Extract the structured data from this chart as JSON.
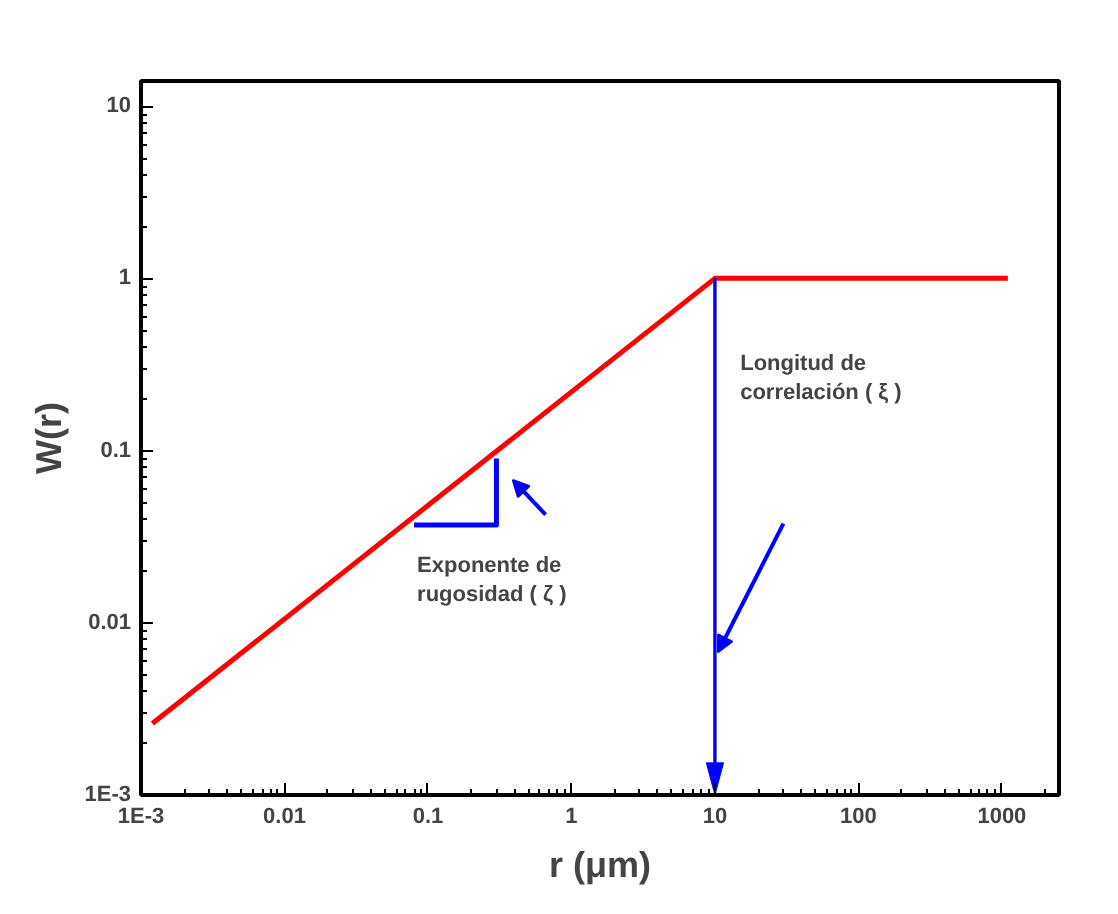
{
  "chart_data": {
    "type": "line",
    "xlabel": "r (μm)",
    "ylabel": "W(r)",
    "log": "xy",
    "xlim": [
      0.001,
      2500
    ],
    "ylim": [
      0.001,
      14
    ],
    "xticks": [
      {
        "value": 0.001,
        "label": "1E-3"
      },
      0.01,
      0.1,
      1,
      10,
      100,
      1000
    ],
    "yticks": [
      {
        "value": 0.001,
        "label": "1E-3"
      },
      0.01,
      0.1,
      1,
      10
    ],
    "series": [
      {
        "color": "#ff0000",
        "x": [
          0.0012,
          10,
          1100
        ],
        "values": [
          0.0026,
          1,
          1
        ]
      },
      {
        "color": "#0000ff",
        "x": [
          0.08,
          0.3,
          0.3
        ],
        "values": [
          0.037,
          0.037,
          0.09
        ]
      }
    ],
    "annotations": [
      {
        "text": "Exponente de\nrugosidad ( ζ )",
        "x": 0.3,
        "y": 0.05
      },
      "Longitud de\ncorrelación ( ξ )"
    ],
    "ref_lines": [
      {
        "axis": "x",
        "value": 10,
        "color": "#0000ff"
      }
    ],
    "grid": false,
    "marker": "none",
    "line_style": "solid"
  }
}
